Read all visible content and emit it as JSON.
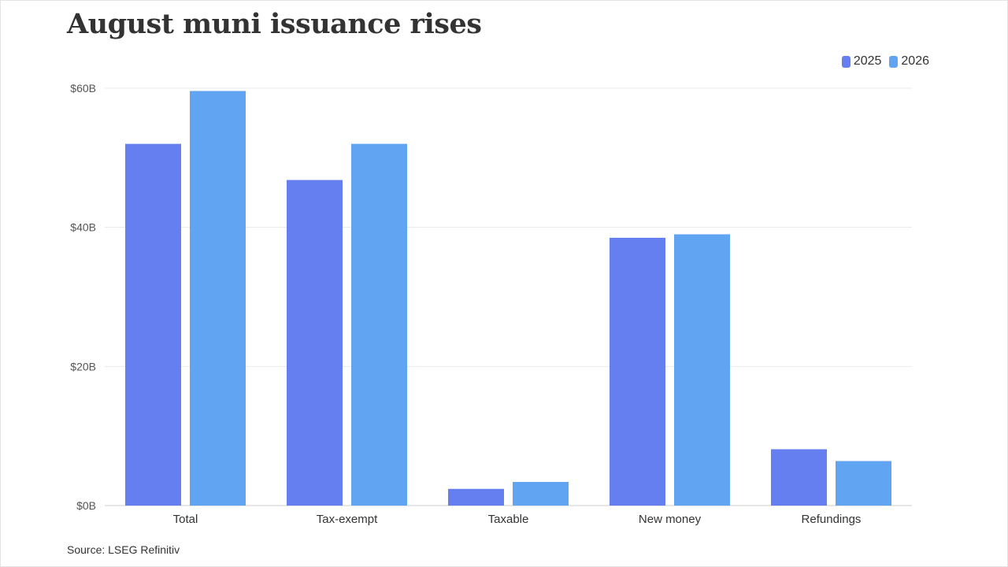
{
  "title": "August muni issuance rises",
  "source": "Source: LSEG Refinitiv",
  "colors": {
    "2025": "#657ef0",
    "2026": "#60a4f2",
    "grid": "#eaeaea",
    "axis": "#cccccc"
  },
  "chart_data": {
    "type": "bar",
    "title": "August muni issuance rises",
    "categories": [
      "Total",
      "Tax-exempt",
      "Taxable",
      "New money",
      "Refundings"
    ],
    "series": [
      {
        "name": "2025",
        "values": [
          52,
          46.8,
          2.4,
          38.5,
          8.1
        ]
      },
      {
        "name": "2026",
        "values": [
          59.6,
          52,
          3.4,
          39,
          6.4
        ]
      }
    ],
    "xlabel": "",
    "ylabel": "",
    "ylim": [
      0,
      60
    ],
    "yticks": [
      0,
      20,
      40,
      60
    ],
    "ytick_labels": [
      "$0B",
      "$20B",
      "$40B",
      "$60B"
    ],
    "legend": "top-right",
    "grid": true
  }
}
